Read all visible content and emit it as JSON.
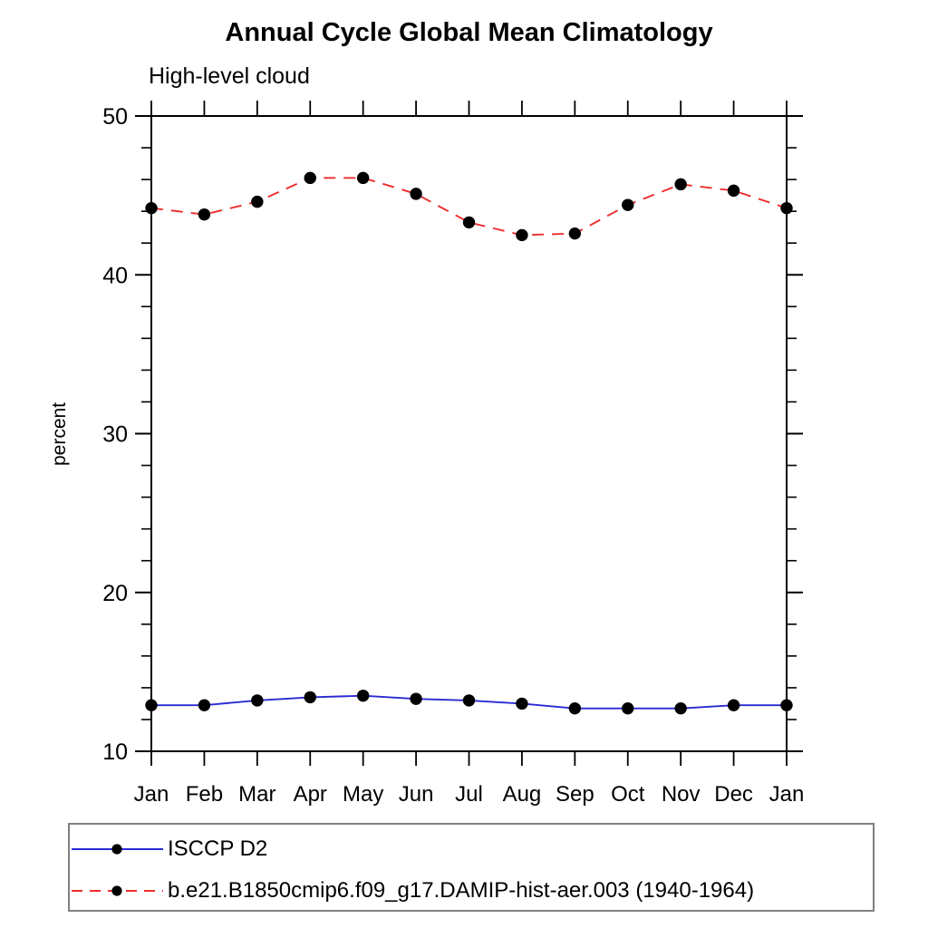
{
  "header": {
    "title": "Annual Cycle Global Mean Climatology",
    "subtitle": "High-level cloud"
  },
  "chart_data": {
    "type": "line",
    "title": "Annual Cycle Global Mean Climatology",
    "subtitle": "High-level cloud",
    "xlabel": "",
    "ylabel": "percent",
    "categories": [
      "Jan",
      "Feb",
      "Mar",
      "Apr",
      "May",
      "Jun",
      "Jul",
      "Aug",
      "Sep",
      "Oct",
      "Nov",
      "Dec",
      "Jan"
    ],
    "ylim": [
      10,
      50
    ],
    "y_major_step": 10,
    "y_minor_step": 2,
    "y_tick_labels": [
      "10",
      "20",
      "30",
      "40",
      "50"
    ],
    "grid": false,
    "legend_position": "bottom-left-box",
    "axis_color": "#000000",
    "marker": {
      "shape": "circle",
      "color": "#000000",
      "radius": 6.7
    },
    "series": [
      {
        "name": "ISCCP D2",
        "color": "#2a2ad4",
        "line_style": "solid",
        "values": [
          12.9,
          12.9,
          13.2,
          13.4,
          13.5,
          13.3,
          13.2,
          13.0,
          12.7,
          12.7,
          12.7,
          12.9,
          12.9
        ]
      },
      {
        "name": "b.e21.B1850cmip6.f09_g17.DAMIP-hist-aer.003 (1940-1964)",
        "color": "#ee2c2c",
        "line_style": "dashed",
        "values": [
          44.2,
          43.8,
          44.6,
          46.1,
          46.1,
          45.1,
          43.3,
          42.5,
          42.6,
          44.4,
          45.7,
          45.3,
          44.2
        ]
      }
    ]
  }
}
